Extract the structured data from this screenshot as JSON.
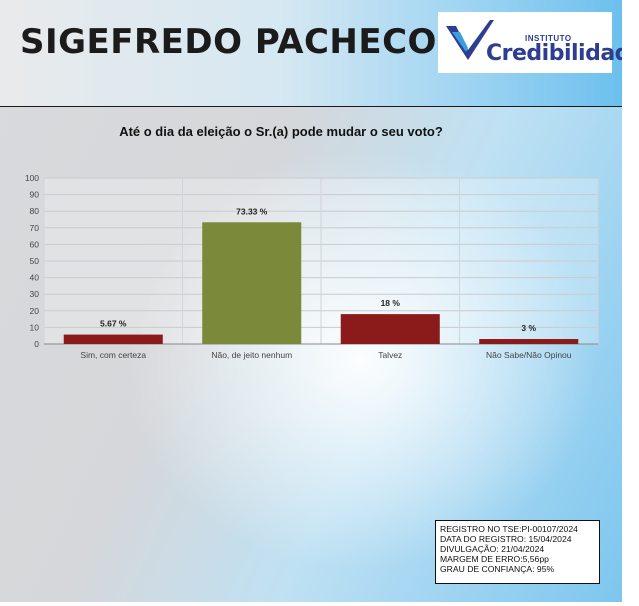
{
  "header": {
    "title": "SIGEFREDO PACHECO - PI",
    "logo": {
      "kicker": "INSTITUTO",
      "name": "Credibilidade",
      "mark_colors": [
        "#2d3d8f",
        "#3aa0dd"
      ]
    }
  },
  "chart_data": {
    "type": "bar",
    "title": "Até o dia da eleição o Sr.(a) pode mudar o seu voto?",
    "xlabel": "",
    "ylabel": "",
    "categories": [
      "Sim, com certeza",
      "Não, de jeito nenhum",
      "Talvez",
      "Não Sabe/Não Opinou"
    ],
    "values": [
      5.67,
      73.33,
      18,
      3
    ],
    "data_labels": [
      "5.67 %",
      "73.33 %",
      "18 %",
      "3 %"
    ],
    "colors": [
      "#8b1a1a",
      "#7b8a3a",
      "#8b1a1a",
      "#8b1a1a"
    ],
    "ylim": [
      0,
      100
    ],
    "yticks": [
      0,
      10,
      20,
      30,
      40,
      50,
      60,
      70,
      80,
      90,
      100
    ],
    "grid": true
  },
  "info_box": {
    "lines": [
      "REGISTRO NO TSE:PI-00107/2024",
      "DATA DO REGISTRO: 15/04/2024",
      "DIVULGAÇÃO: 21/04/2024",
      "MARGEM DE ERRO:5,56pp",
      "GRAU DE CONFIANÇA: 95%"
    ]
  }
}
